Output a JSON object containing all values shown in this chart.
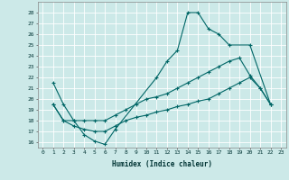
{
  "xlabel": "Humidex (Indice chaleur)",
  "xlim": [
    -0.5,
    23.5
  ],
  "ylim": [
    15.5,
    29
  ],
  "yticks": [
    16,
    17,
    18,
    19,
    20,
    21,
    22,
    23,
    24,
    25,
    26,
    27,
    28
  ],
  "xticks": [
    0,
    1,
    2,
    3,
    4,
    5,
    6,
    7,
    8,
    9,
    10,
    11,
    12,
    13,
    14,
    15,
    16,
    17,
    18,
    19,
    20,
    21,
    22,
    23
  ],
  "bg_color": "#cce9e8",
  "line_color": "#006666",
  "grid_color": "#ffffff",
  "lines": [
    {
      "x": [
        1,
        2,
        3,
        4,
        5,
        6,
        7,
        11,
        12,
        13,
        14,
        15,
        16,
        17,
        18,
        20,
        22
      ],
      "y": [
        21.5,
        19.5,
        18,
        16.7,
        16.1,
        15.8,
        17.2,
        22,
        23.5,
        24.5,
        28,
        28,
        26.5,
        26,
        25,
        25,
        19.5
      ]
    },
    {
      "x": [
        1,
        2,
        3,
        4,
        5,
        6,
        7,
        8,
        9,
        10,
        11,
        12,
        13,
        14,
        15,
        16,
        17,
        18,
        19,
        20,
        21,
        22
      ],
      "y": [
        19.5,
        18,
        18,
        18,
        18,
        18,
        18.5,
        19,
        19.5,
        20,
        20.2,
        20.5,
        21,
        21.5,
        22,
        22.5,
        23,
        23.5,
        23.8,
        22.2,
        21,
        19.5
      ]
    },
    {
      "x": [
        1,
        2,
        3,
        4,
        5,
        6,
        7,
        8,
        9,
        10,
        11,
        12,
        13,
        14,
        15,
        16,
        17,
        18,
        19,
        20,
        21,
        22
      ],
      "y": [
        19.5,
        18,
        17.5,
        17.2,
        17.0,
        17.0,
        17.5,
        18,
        18.3,
        18.5,
        18.8,
        19,
        19.3,
        19.5,
        19.8,
        20,
        20.5,
        21,
        21.5,
        22,
        21,
        19.5
      ]
    }
  ]
}
